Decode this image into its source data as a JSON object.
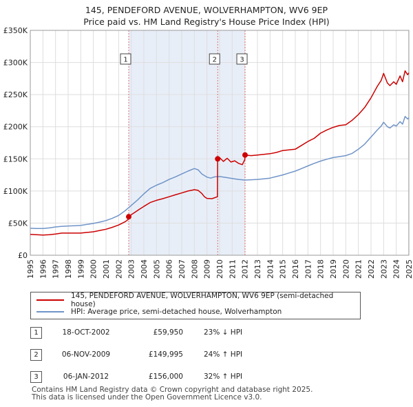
{
  "title": {
    "line1": "145, PENDEFORD AVENUE, WOLVERHAMPTON, WV6 9EP",
    "line2": "Price paid vs. HM Land Registry's House Price Index (HPI)"
  },
  "chart_data": {
    "type": "line",
    "title": "145, PENDEFORD AVENUE, WOLVERHAMPTON, WV6 9EP",
    "xlim": [
      1995,
      2025
    ],
    "ylim": [
      0,
      350000
    ],
    "y_ticks": [
      0,
      50000,
      100000,
      150000,
      200000,
      250000,
      300000,
      350000
    ],
    "y_tick_labels": [
      "£0",
      "£50K",
      "£100K",
      "£150K",
      "£200K",
      "£250K",
      "£300K",
      "£350K"
    ],
    "x_ticks": [
      1995,
      1996,
      1997,
      1998,
      1999,
      2000,
      2001,
      2002,
      2003,
      2004,
      2005,
      2006,
      2007,
      2008,
      2009,
      2010,
      2011,
      2012,
      2013,
      2014,
      2015,
      2016,
      2017,
      2018,
      2019,
      2020,
      2021,
      2022,
      2023,
      2024,
      2025
    ],
    "x_tick_labels": [
      "1995",
      "1996",
      "1997",
      "1998",
      "1999",
      "2000",
      "2001",
      "2002",
      "2003",
      "2004",
      "2005",
      "2006",
      "2007",
      "2008",
      "2009",
      "2010",
      "2011",
      "2012",
      "2013",
      "2014",
      "2015",
      "2016",
      "2017",
      "2018",
      "2019",
      "2020",
      "2021",
      "2022",
      "2023",
      "2024",
      "2025"
    ],
    "grid": true,
    "shaded_period": [
      2002.8,
      2012.02
    ],
    "series": [
      {
        "name": "145, PENDEFORD AVENUE, WOLVERHAMPTON, WV6 9EP (semi-detached house)",
        "color": "#cc0000",
        "points": [
          [
            1995.0,
            32500
          ],
          [
            1995.5,
            32000
          ],
          [
            1996.0,
            31500
          ],
          [
            1996.5,
            32000
          ],
          [
            1997.0,
            33000
          ],
          [
            1997.5,
            34500
          ],
          [
            1998.0,
            34500
          ],
          [
            1998.5,
            34500
          ],
          [
            1999.0,
            34500
          ],
          [
            1999.5,
            35500
          ],
          [
            2000.0,
            36500
          ],
          [
            2000.5,
            38500
          ],
          [
            2001.0,
            40500
          ],
          [
            2001.5,
            43500
          ],
          [
            2002.0,
            47000
          ],
          [
            2002.5,
            52000
          ],
          [
            2002.79,
            56000
          ],
          [
            2002.8,
            59950
          ],
          [
            2003.0,
            63000
          ],
          [
            2003.3,
            67000
          ],
          [
            2003.6,
            71000
          ],
          [
            2004.0,
            76000
          ],
          [
            2004.5,
            82000
          ],
          [
            2005.0,
            85500
          ],
          [
            2005.5,
            88000
          ],
          [
            2006.0,
            91000
          ],
          [
            2006.5,
            94000
          ],
          [
            2007.0,
            97000
          ],
          [
            2007.5,
            100000
          ],
          [
            2008.0,
            102000
          ],
          [
            2008.3,
            101000
          ],
          [
            2008.6,
            96000
          ],
          [
            2008.8,
            91000
          ],
          [
            2009.0,
            88500
          ],
          [
            2009.4,
            88000
          ],
          [
            2009.83,
            91000
          ],
          [
            2009.85,
            149995
          ],
          [
            2010.0,
            152000
          ],
          [
            2010.3,
            146000
          ],
          [
            2010.6,
            151000
          ],
          [
            2010.9,
            145000
          ],
          [
            2011.2,
            147000
          ],
          [
            2011.5,
            143000
          ],
          [
            2011.8,
            141000
          ],
          [
            2012.0,
            149000
          ],
          [
            2012.02,
            156000
          ],
          [
            2012.5,
            155000
          ],
          [
            2013.0,
            156000
          ],
          [
            2013.5,
            157000
          ],
          [
            2014.0,
            158000
          ],
          [
            2014.5,
            160000
          ],
          [
            2015.0,
            163000
          ],
          [
            2015.5,
            164000
          ],
          [
            2016.0,
            165000
          ],
          [
            2016.5,
            171000
          ],
          [
            2017.0,
            177000
          ],
          [
            2017.5,
            182000
          ],
          [
            2018.0,
            190000
          ],
          [
            2018.5,
            195000
          ],
          [
            2019.0,
            199000
          ],
          [
            2019.5,
            202000
          ],
          [
            2020.0,
            203000
          ],
          [
            2020.5,
            210000
          ],
          [
            2021.0,
            219000
          ],
          [
            2021.5,
            230000
          ],
          [
            2022.0,
            245000
          ],
          [
            2022.5,
            263000
          ],
          [
            2022.8,
            272000
          ],
          [
            2023.0,
            283000
          ],
          [
            2023.3,
            268000
          ],
          [
            2023.5,
            264000
          ],
          [
            2023.8,
            270000
          ],
          [
            2024.0,
            266000
          ],
          [
            2024.3,
            279000
          ],
          [
            2024.5,
            270000
          ],
          [
            2024.7,
            287000
          ],
          [
            2024.9,
            281000
          ],
          [
            2025.0,
            284000
          ]
        ]
      },
      {
        "name": "HPI: Average price, semi-detached house, Wolverhampton",
        "color": "#6f94c8",
        "points": [
          [
            1995.0,
            42000
          ],
          [
            1995.5,
            41500
          ],
          [
            1996.0,
            41500
          ],
          [
            1996.5,
            42500
          ],
          [
            1997.0,
            44000
          ],
          [
            1997.5,
            45000
          ],
          [
            1998.0,
            45500
          ],
          [
            1998.5,
            46000
          ],
          [
            1999.0,
            46500
          ],
          [
            1999.5,
            48000
          ],
          [
            2000.0,
            49500
          ],
          [
            2000.5,
            51500
          ],
          [
            2001.0,
            54000
          ],
          [
            2001.5,
            57500
          ],
          [
            2002.0,
            62000
          ],
          [
            2002.5,
            69000
          ],
          [
            2003.0,
            77500
          ],
          [
            2003.5,
            86000
          ],
          [
            2004.0,
            95500
          ],
          [
            2004.5,
            104000
          ],
          [
            2005.0,
            109000
          ],
          [
            2005.5,
            113000
          ],
          [
            2006.0,
            118000
          ],
          [
            2006.5,
            122000
          ],
          [
            2007.0,
            126500
          ],
          [
            2007.5,
            131000
          ],
          [
            2008.0,
            135000
          ],
          [
            2008.3,
            133000
          ],
          [
            2008.6,
            126500
          ],
          [
            2009.0,
            121500
          ],
          [
            2009.3,
            120000
          ],
          [
            2009.6,
            122000
          ],
          [
            2010.0,
            122500
          ],
          [
            2010.5,
            121000
          ],
          [
            2011.0,
            119500
          ],
          [
            2011.5,
            118000
          ],
          [
            2012.0,
            117000
          ],
          [
            2012.5,
            117500
          ],
          [
            2013.0,
            118000
          ],
          [
            2013.5,
            119000
          ],
          [
            2014.0,
            120000
          ],
          [
            2014.5,
            122500
          ],
          [
            2015.0,
            125000
          ],
          [
            2015.5,
            128000
          ],
          [
            2016.0,
            131000
          ],
          [
            2016.5,
            135000
          ],
          [
            2017.0,
            139000
          ],
          [
            2017.5,
            143000
          ],
          [
            2018.0,
            146500
          ],
          [
            2018.5,
            149500
          ],
          [
            2019.0,
            152000
          ],
          [
            2019.5,
            153500
          ],
          [
            2020.0,
            155000
          ],
          [
            2020.5,
            158500
          ],
          [
            2021.0,
            165000
          ],
          [
            2021.5,
            173000
          ],
          [
            2022.0,
            184000
          ],
          [
            2022.5,
            195000
          ],
          [
            2022.8,
            201000
          ],
          [
            2023.0,
            207000
          ],
          [
            2023.3,
            200000
          ],
          [
            2023.5,
            198000
          ],
          [
            2023.8,
            203000
          ],
          [
            2024.0,
            201000
          ],
          [
            2024.3,
            208000
          ],
          [
            2024.5,
            204000
          ],
          [
            2024.7,
            216000
          ],
          [
            2024.9,
            212000
          ],
          [
            2025.0,
            214000
          ]
        ]
      }
    ],
    "sale_markers": [
      {
        "label": "1",
        "x": 2002.8,
        "y": 59950
      },
      {
        "label": "2",
        "x": 2009.85,
        "y": 149995
      },
      {
        "label": "3",
        "x": 2012.02,
        "y": 156000
      }
    ]
  },
  "legend": {
    "items": [
      {
        "label": "145, PENDEFORD AVENUE, WOLVERHAMPTON, WV6 9EP (semi-detached house)",
        "color": "#cc0000"
      },
      {
        "label": "HPI: Average price, semi-detached house, Wolverhampton",
        "color": "#6f94c8"
      }
    ]
  },
  "sales": [
    {
      "num": "1",
      "date": "18-OCT-2002",
      "price": "£59,950",
      "hpi": "23% ↓ HPI"
    },
    {
      "num": "2",
      "date": "06-NOV-2009",
      "price": "£149,995",
      "hpi": "24% ↑ HPI"
    },
    {
      "num": "3",
      "date": "06-JAN-2012",
      "price": "£156,000",
      "hpi": "32% ↑ HPI"
    }
  ],
  "footer": {
    "line1": "Contains HM Land Registry data © Crown copyright and database right 2025.",
    "line2": "This data is licensed under the Open Government Licence v3.0."
  }
}
